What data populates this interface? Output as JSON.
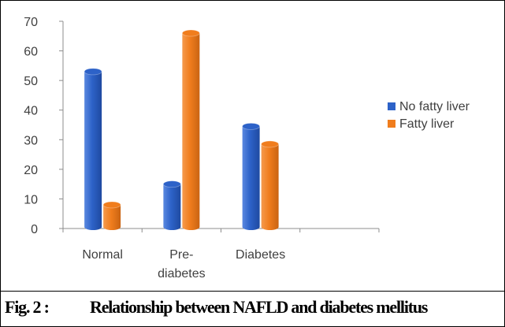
{
  "chart_data": {
    "type": "bar",
    "style": "3d-cylinder",
    "categories": [
      "Normal",
      "Pre-diabetes",
      "Diabetes"
    ],
    "category_label_lines": [
      [
        "Normal"
      ],
      [
        "Pre-",
        "diabetes"
      ],
      [
        "Diabetes"
      ]
    ],
    "series": [
      {
        "name": "No fatty liver",
        "values": [
          53,
          15,
          34.5
        ],
        "color": "#2d62c8"
      },
      {
        "name": "Fatty liver",
        "values": [
          8,
          66,
          28.5
        ],
        "color": "#f07d1d"
      }
    ],
    "ylim": [
      0,
      70
    ],
    "yticks": [
      0,
      10,
      20,
      30,
      40,
      50,
      60,
      70
    ],
    "grid": false,
    "legend_position": "right"
  },
  "caption": {
    "label": "Fig. 2 :",
    "text": "Relationship between NAFLD and diabetes mellitus"
  }
}
